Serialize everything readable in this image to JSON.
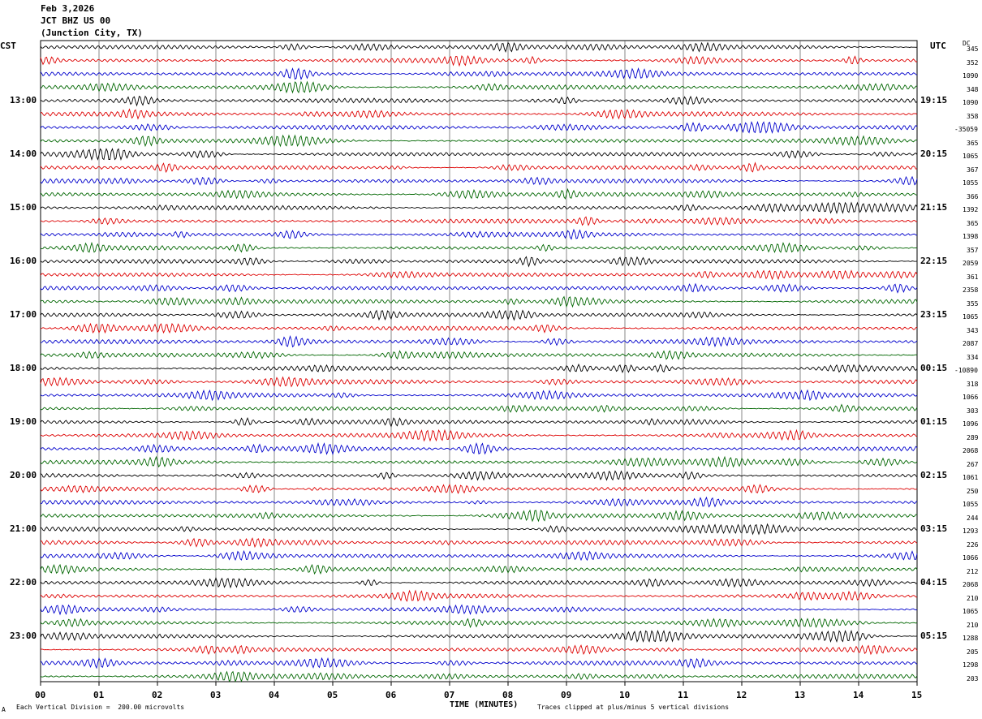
{
  "header": {
    "date": "Feb 3,2026",
    "station": "JCT BHZ US 00",
    "location": "(Junction City, TX)"
  },
  "left_zone_label": "CST",
  "right_zone_label": "UTC",
  "dc_label": "DC",
  "footer": {
    "division": "Each Vertical Division =  200.00 microvolts",
    "clip_note": "Traces clipped at plus/minus 5 vertical divisions",
    "corner_mark": "A"
  },
  "colors": {
    "trace_cycle": [
      "#000000",
      "#dd0000",
      "#0000cc",
      "#006600"
    ],
    "grid": "#000000"
  },
  "chart_data": {
    "type": "line",
    "xlabel": "TIME (MINUTES)",
    "x_ticks": [
      "00",
      "01",
      "02",
      "03",
      "04",
      "05",
      "06",
      "07",
      "08",
      "09",
      "10",
      "11",
      "12",
      "13",
      "14",
      "15"
    ],
    "xlim": [
      0,
      15
    ],
    "left_time_labels": [
      "13:00",
      "14:00",
      "15:00",
      "16:00",
      "17:00",
      "18:00",
      "19:00",
      "20:00",
      "21:00",
      "22:00",
      "23:00"
    ],
    "right_time_labels": [
      "19:15",
      "20:15",
      "21:15",
      "22:15",
      "23:15",
      "00:15",
      "01:15",
      "02:15",
      "03:15",
      "04:15",
      "05:15"
    ],
    "dc_offsets": [
      "345",
      "352",
      "1090",
      "348",
      "1090",
      "358",
      "-35059",
      "365",
      "1065",
      "367",
      "1055",
      "366",
      "1392",
      "365",
      "1398",
      "357",
      "2059",
      "361",
      "2358",
      "355",
      "1065",
      "343",
      "2087",
      "334",
      "-10890",
      "318",
      "1066",
      "303",
      "1096",
      "289",
      "2068",
      "267",
      "1061",
      "250",
      "1055",
      "244",
      "1293",
      "226",
      "1066",
      "212",
      "2068",
      "210",
      "1065",
      "210",
      "1288",
      "205",
      "1298",
      "203"
    ],
    "traces_per_hour": 4,
    "trace_count": 48,
    "trace_minutes": 15
  }
}
